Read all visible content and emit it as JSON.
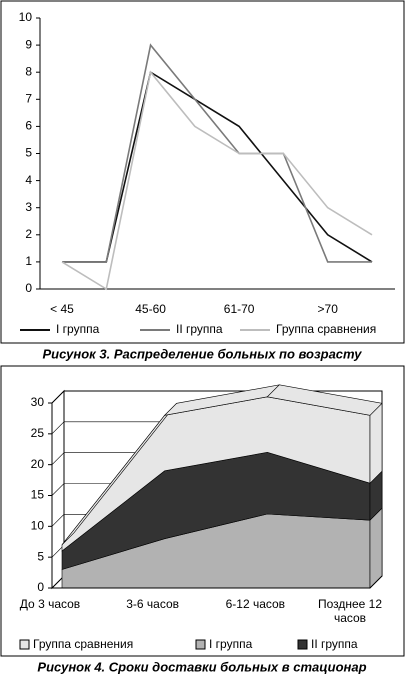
{
  "chart_data": [
    {
      "type": "line",
      "caption": "Рисунок 3. Распределение больных по возрасту",
      "categories": [
        "< 45",
        null,
        "45-60",
        null,
        "61-70",
        null,
        ">70",
        null
      ],
      "series": [
        {
          "name": "I группа",
          "color": "#111111",
          "values": [
            1,
            1,
            8,
            7,
            6,
            4,
            2,
            1
          ]
        },
        {
          "name": "II группа",
          "color": "#7a7a7a",
          "values": [
            1,
            1,
            9,
            7,
            5,
            5,
            1,
            1
          ]
        },
        {
          "name": "Группа сравнения",
          "color": "#bdbdbd",
          "values": [
            1,
            0,
            8,
            6,
            5,
            5,
            3,
            2
          ]
        }
      ],
      "ylim": [
        0,
        10
      ],
      "yticks": [
        0,
        1,
        2,
        3,
        4,
        5,
        6,
        7,
        8,
        9,
        10
      ],
      "grid": false,
      "legend": "bottom"
    },
    {
      "type": "area3d",
      "caption": "Рисунок 4. Сроки доставки больных в стационар",
      "categories": [
        "До 3 часов",
        "3-6 часов",
        "6-12 часов",
        "Позднее 12 часов"
      ],
      "series": [
        {
          "name": "I группа",
          "color": "#b2b2b2",
          "values": [
            3,
            8,
            12,
            11
          ]
        },
        {
          "name": "II группа",
          "color": "#333333",
          "values": [
            3,
            11,
            10,
            6
          ]
        },
        {
          "name": "Группа сравнения",
          "color": "#e6e6e6",
          "values": [
            1,
            9,
            9,
            11
          ]
        }
      ],
      "legend_order": [
        2,
        0,
        1
      ],
      "ylim": [
        0,
        30
      ],
      "yticks": [
        0,
        5,
        10,
        15,
        20,
        25,
        30
      ],
      "grid": true,
      "legend": "bottom"
    }
  ]
}
